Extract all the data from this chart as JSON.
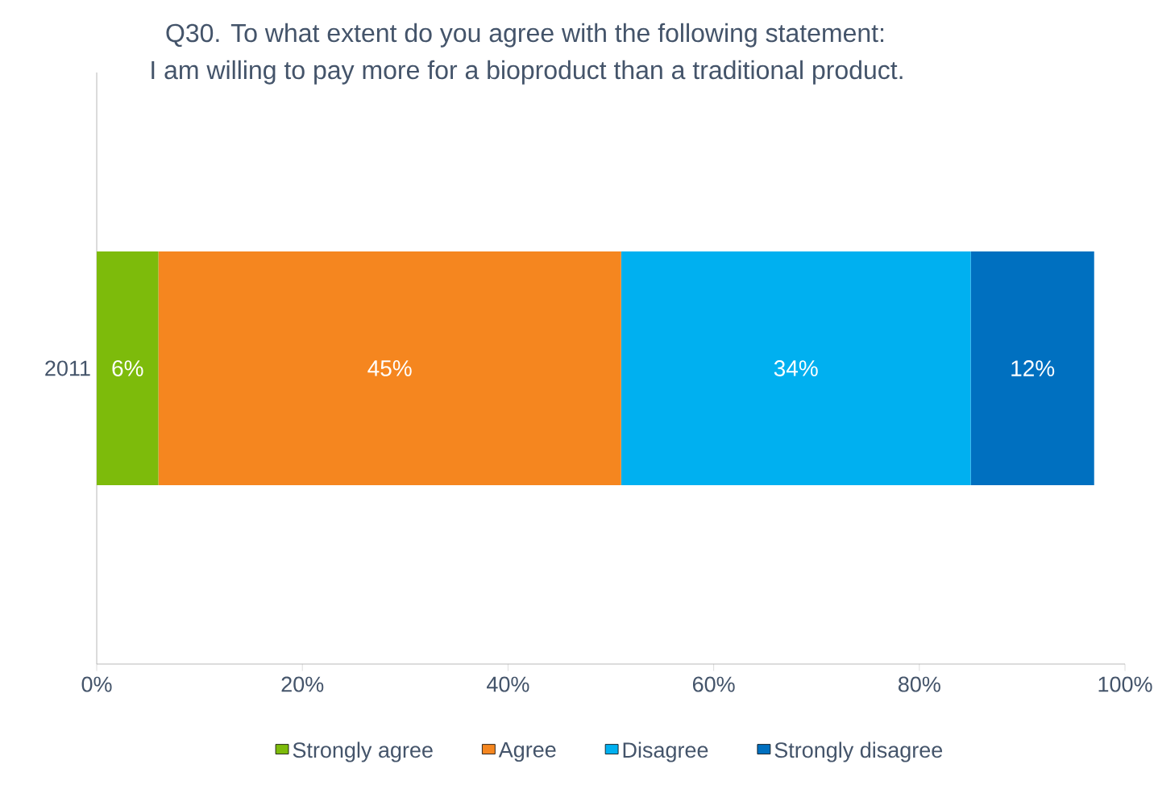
{
  "chart_data": {
    "type": "bar",
    "orientation": "horizontal",
    "stacked": true,
    "title": "Q30. To what extent do you agree with the following statement:",
    "subtitle": "I am willing to pay more for a bioproduct than a traditional product.",
    "categories": [
      "2011"
    ],
    "series": [
      {
        "name": "Strongly agree",
        "color": "#7dbb0b",
        "values": [
          6
        ],
        "value_labels": [
          "6%"
        ]
      },
      {
        "name": "Agree",
        "color": "#f5861f",
        "values": [
          45
        ],
        "value_labels": [
          "45%"
        ]
      },
      {
        "name": "Disagree",
        "color": "#00b0f0",
        "values": [
          34
        ],
        "value_labels": [
          "34%"
        ]
      },
      {
        "name": "Strongly disagree",
        "color": "#0070c0",
        "values": [
          12
        ],
        "value_labels": [
          "12%"
        ]
      }
    ],
    "xlim": [
      0,
      100
    ],
    "xticks": [
      {
        "value": 0,
        "label": "0%"
      },
      {
        "value": 20,
        "label": "20%"
      },
      {
        "value": 40,
        "label": "40%"
      },
      {
        "value": 60,
        "label": "60%"
      },
      {
        "value": 80,
        "label": "80%"
      },
      {
        "value": 100,
        "label": "100%"
      }
    ],
    "grid": false,
    "legend": "bottom"
  }
}
